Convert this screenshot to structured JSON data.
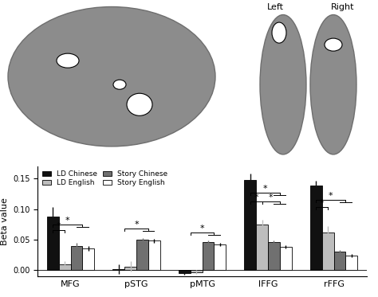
{
  "chart_data": {
    "type": "bar",
    "y_label": "Beta value",
    "categories": [
      "MFG",
      "pSTG",
      "pMTG",
      "lFFG",
      "rFFG"
    ],
    "series": [
      {
        "name": "LD Chinese",
        "color": "#111111",
        "values": [
          0.088,
          0.002,
          -0.005,
          0.148,
          0.138
        ],
        "errors": [
          0.015,
          0.008,
          0.003,
          0.01,
          0.008
        ]
      },
      {
        "name": "LD English",
        "color": "#bdbdbd",
        "values": [
          0.01,
          0.006,
          -0.003,
          0.075,
          0.062
        ],
        "errors": [
          0.005,
          0.008,
          0.003,
          0.008,
          0.01
        ]
      },
      {
        "name": "Story Chinese",
        "color": "#707070",
        "values": [
          0.04,
          0.05,
          0.046,
          0.046,
          0.03
        ],
        "errors": [
          0.004,
          0.003,
          0.003,
          0.003,
          0.003
        ]
      },
      {
        "name": "Story English",
        "color": "#ffffff",
        "values": [
          0.035,
          0.048,
          0.042,
          0.038,
          0.024
        ],
        "errors": [
          0.004,
          0.003,
          0.003,
          0.003,
          0.003
        ]
      }
    ],
    "significance": [
      {
        "category": "MFG",
        "from": [
          "LD Chinese"
        ],
        "to": [
          "LD English"
        ],
        "y": 0.065,
        "text": "*"
      },
      {
        "category": "MFG",
        "from": [
          "LD Chinese"
        ],
        "to": [
          "Story Chinese",
          "Story English"
        ],
        "y": 0.075,
        "text": "*"
      },
      {
        "category": "pSTG",
        "from": [
          "LD Chinese",
          "LD English"
        ],
        "to": [
          "Story Chinese",
          "Story English"
        ],
        "y": 0.068,
        "text": "*"
      },
      {
        "category": "pMTG",
        "from": [
          "LD Chinese",
          "LD English"
        ],
        "to": [
          "Story Chinese",
          "Story English"
        ],
        "y": 0.062,
        "text": "*"
      },
      {
        "category": "lFFG",
        "from": [
          "LD Chinese"
        ],
        "to": [
          "LD English"
        ],
        "y": 0.113,
        "text": "*"
      },
      {
        "category": "lFFG",
        "from": [
          "LD Chinese"
        ],
        "to": [
          "Story Chinese",
          "Story English"
        ],
        "y": 0.127,
        "text": "*"
      },
      {
        "category": "lFFG",
        "from": [
          "LD English"
        ],
        "to": [
          "Story Chinese",
          "Story English"
        ],
        "y": 0.113,
        "text": "*"
      },
      {
        "category": "rFFG",
        "from": [
          "LD Chinese"
        ],
        "to": [
          "LD English"
        ],
        "y": 0.103,
        "text": "*"
      },
      {
        "category": "rFFG",
        "from": [
          "LD Chinese"
        ],
        "to": [
          "Story Chinese",
          "Story English"
        ],
        "y": 0.115,
        "text": "*"
      }
    ],
    "ylim": [
      -0.01,
      0.17
    ],
    "yticks": [
      {
        "value": 0,
        "label": "0.00"
      },
      {
        "value": 0.05,
        "label": "0.05"
      },
      {
        "value": 0.1,
        "label": "0.10"
      },
      {
        "value": 0.15,
        "label": "0.15"
      }
    ],
    "legend": "upper left",
    "grid": false
  },
  "brain_views": {
    "labels": [
      "Left",
      "Right"
    ]
  }
}
